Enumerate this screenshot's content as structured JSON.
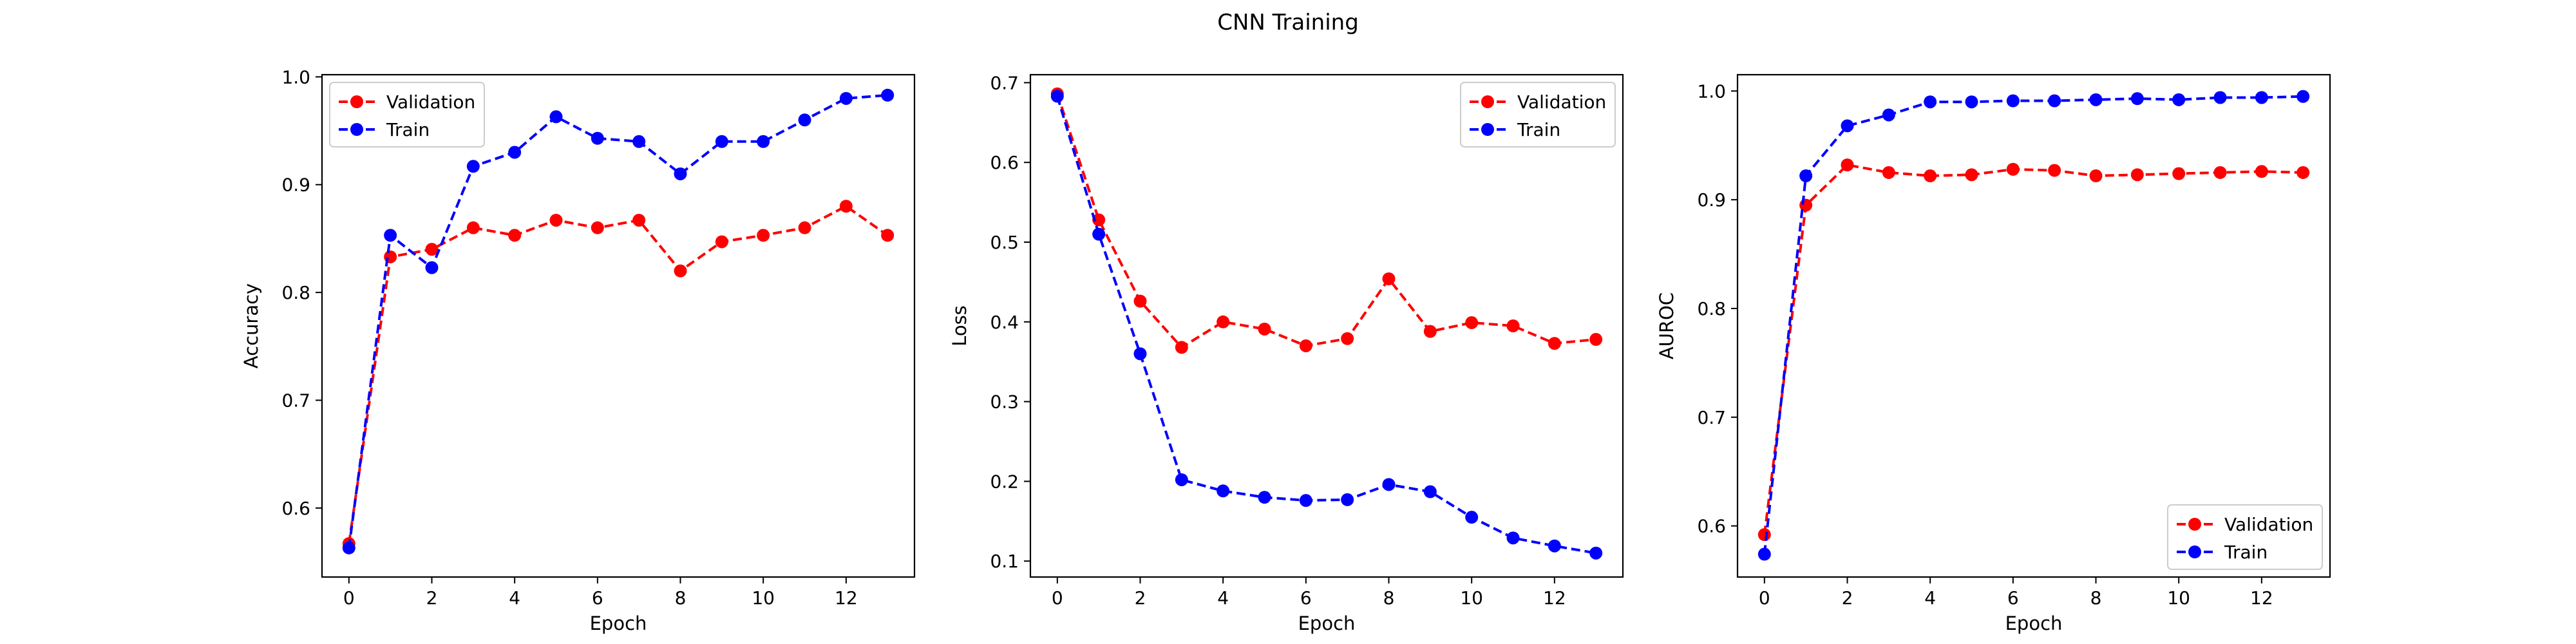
{
  "figure": {
    "title": "CNN Training",
    "colors": {
      "validation": "#ff0000",
      "train": "#0000ff"
    }
  },
  "chart_data": [
    {
      "type": "line",
      "title": "",
      "xlabel": "Epoch",
      "ylabel": "Accuracy",
      "xlim": [
        -0.65,
        13.65
      ],
      "ylim": [
        0.536,
        1.002
      ],
      "xticks": [
        0,
        2,
        4,
        6,
        8,
        10,
        12
      ],
      "yticks": [
        0.6,
        0.7,
        0.8,
        0.9,
        1.0
      ],
      "ytick_labels": [
        "0.6",
        "0.7",
        "0.8",
        "0.9",
        "1.0"
      ],
      "legend_loc": "upper-left",
      "x": [
        0,
        1,
        2,
        3,
        4,
        5,
        6,
        7,
        8,
        9,
        10,
        11,
        12,
        13
      ],
      "series": [
        {
          "name": "Validation",
          "color": "#ff0000",
          "values": [
            0.567,
            0.833,
            0.84,
            0.86,
            0.853,
            0.867,
            0.86,
            0.867,
            0.82,
            0.847,
            0.853,
            0.86,
            0.88,
            0.853
          ]
        },
        {
          "name": "Train",
          "color": "#0000ff",
          "values": [
            0.563,
            0.853,
            0.823,
            0.917,
            0.93,
            0.963,
            0.943,
            0.94,
            0.91,
            0.94,
            0.94,
            0.96,
            0.98,
            0.983
          ]
        }
      ]
    },
    {
      "type": "line",
      "title": "",
      "xlabel": "Epoch",
      "ylabel": "Loss",
      "xlim": [
        -0.65,
        13.65
      ],
      "ylim": [
        0.08,
        0.71
      ],
      "xticks": [
        0,
        2,
        4,
        6,
        8,
        10,
        12
      ],
      "yticks": [
        0.1,
        0.2,
        0.3,
        0.4,
        0.5,
        0.6,
        0.7
      ],
      "ytick_labels": [
        "0.1",
        "0.2",
        "0.3",
        "0.4",
        "0.5",
        "0.6",
        "0.7"
      ],
      "legend_loc": "upper-right",
      "x": [
        0,
        1,
        2,
        3,
        4,
        5,
        6,
        7,
        8,
        9,
        10,
        11,
        12,
        13
      ],
      "series": [
        {
          "name": "Validation",
          "color": "#ff0000",
          "values": [
            0.686,
            0.528,
            0.426,
            0.368,
            0.4,
            0.391,
            0.37,
            0.379,
            0.454,
            0.388,
            0.399,
            0.395,
            0.373,
            0.378
          ]
        },
        {
          "name": "Train",
          "color": "#0000ff",
          "values": [
            0.683,
            0.51,
            0.36,
            0.202,
            0.188,
            0.18,
            0.176,
            0.177,
            0.196,
            0.187,
            0.155,
            0.129,
            0.119,
            0.11
          ]
        }
      ]
    },
    {
      "type": "line",
      "title": "",
      "xlabel": "Epoch",
      "ylabel": "AUROC",
      "xlim": [
        -0.65,
        13.65
      ],
      "ylim": [
        0.553,
        1.015
      ],
      "xticks": [
        0,
        2,
        4,
        6,
        8,
        10,
        12
      ],
      "yticks": [
        0.6,
        0.7,
        0.8,
        0.9,
        1.0
      ],
      "ytick_labels": [
        "0.6",
        "0.7",
        "0.8",
        "0.9",
        "1.0"
      ],
      "legend_loc": "lower-right",
      "x": [
        0,
        1,
        2,
        3,
        4,
        5,
        6,
        7,
        8,
        9,
        10,
        11,
        12,
        13
      ],
      "series": [
        {
          "name": "Validation",
          "color": "#ff0000",
          "values": [
            0.592,
            0.895,
            0.932,
            0.925,
            0.922,
            0.923,
            0.928,
            0.927,
            0.922,
            0.923,
            0.924,
            0.925,
            0.926,
            0.925
          ]
        },
        {
          "name": "Train",
          "color": "#0000ff",
          "values": [
            0.574,
            0.922,
            0.968,
            0.978,
            0.99,
            0.99,
            0.991,
            0.991,
            0.992,
            0.993,
            0.992,
            0.994,
            0.994,
            0.995
          ]
        }
      ]
    }
  ]
}
